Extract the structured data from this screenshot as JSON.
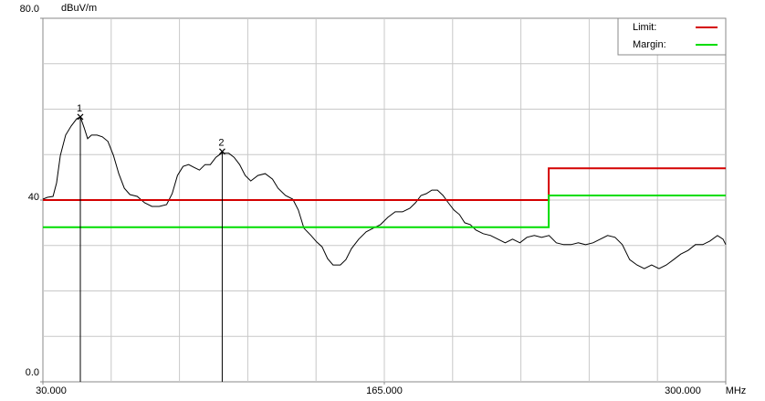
{
  "chart_data": {
    "type": "line",
    "y_unit": "dBuV/m",
    "x_unit": "MHz",
    "xlim": [
      30,
      300
    ],
    "ylim": [
      0,
      80
    ],
    "xticks": [
      {
        "value": 30,
        "label": "30.000"
      },
      {
        "value": 165,
        "label": "165.000"
      },
      {
        "value": 300,
        "label": "300.000"
      }
    ],
    "yticks": [
      {
        "value": 0,
        "label": "0.0"
      },
      40,
      {
        "value": 80,
        "label": "80.0"
      }
    ],
    "xgrid": [
      57,
      84,
      111,
      138,
      165,
      192,
      219,
      246,
      273
    ],
    "ygrid": [
      10,
      20,
      30,
      40,
      50,
      60,
      70
    ],
    "grid": true,
    "legend": "top-right",
    "series": [
      {
        "name": "Limit:",
        "color": "#d40000",
        "x": [
          30,
          230,
          230,
          300
        ],
        "values": [
          40,
          40,
          47,
          47
        ]
      },
      {
        "name": "Margin:",
        "color": "#00dd00",
        "x": [
          30,
          230,
          230,
          300
        ],
        "values": [
          34,
          34,
          41,
          41
        ]
      }
    ],
    "trace": {
      "color": "#000000",
      "x": [
        30.0,
        31.8,
        34.0,
        35.4,
        36.9,
        39.0,
        41.2,
        43.4,
        44.8,
        46.3,
        47.7,
        49.2,
        51.4,
        53.5,
        55.7,
        57.9,
        60.0,
        62.2,
        64.4,
        67.3,
        70.2,
        73.1,
        76.0,
        78.9,
        81.1,
        83.2,
        85.4,
        87.6,
        89.7,
        91.9,
        94.1,
        96.2,
        98.4,
        100.6,
        103.5,
        105.6,
        107.8,
        110.0,
        112.2,
        115.0,
        117.9,
        120.8,
        123.0,
        125.9,
        128.8,
        131.0,
        133.2,
        136.0,
        138.2,
        140.4,
        142.6,
        144.7,
        147.6,
        149.8,
        152.0,
        154.9,
        157.8,
        160.6,
        163.5,
        166.4,
        169.3,
        172.2,
        175.1,
        177.3,
        179.5,
        181.6,
        183.8,
        186.0,
        188.2,
        190.3,
        192.5,
        194.7,
        196.8,
        199.0,
        201.2,
        204.1,
        207.0,
        209.9,
        212.8,
        215.7,
        218.6,
        221.4,
        224.3,
        227.2,
        230.1,
        233.0,
        235.9,
        238.8,
        241.7,
        244.6,
        247.5,
        250.4,
        253.3,
        256.2,
        259.1,
        262.0,
        264.9,
        267.8,
        270.7,
        273.6,
        276.5,
        279.4,
        282.2,
        285.1,
        288.0,
        290.9,
        293.8,
        296.7,
        298.9,
        300.0
      ],
      "values": [
        40.2,
        40.6,
        40.8,
        43.8,
        49.8,
        54.3,
        56.3,
        57.9,
        58.3,
        55.9,
        53.5,
        54.3,
        54.3,
        53.9,
        52.9,
        49.8,
        45.8,
        42.6,
        41.2,
        40.8,
        39.4,
        38.6,
        38.6,
        39.0,
        41.4,
        45.4,
        47.4,
        47.8,
        47.2,
        46.6,
        47.8,
        47.8,
        49.4,
        50.3,
        50.3,
        49.4,
        47.8,
        45.4,
        44.2,
        45.4,
        45.8,
        44.6,
        42.6,
        41.0,
        40.2,
        37.8,
        33.8,
        32.2,
        30.8,
        29.7,
        27.1,
        25.7,
        25.7,
        26.9,
        29.3,
        31.4,
        33.0,
        33.8,
        34.6,
        36.2,
        37.4,
        37.4,
        38.2,
        39.4,
        41.0,
        41.4,
        42.2,
        42.2,
        41.0,
        39.4,
        37.8,
        36.8,
        35.0,
        34.6,
        33.4,
        32.6,
        32.2,
        31.4,
        30.6,
        31.4,
        30.6,
        31.8,
        32.2,
        31.8,
        32.2,
        30.6,
        30.2,
        30.2,
        30.6,
        30.2,
        30.6,
        31.4,
        32.2,
        31.8,
        30.2,
        26.9,
        25.7,
        24.9,
        25.7,
        24.9,
        25.7,
        26.9,
        28.1,
        28.9,
        30.2,
        30.2,
        31.0,
        32.2,
        31.4,
        30.2
      ]
    },
    "markers": [
      {
        "label": "1",
        "x": 44.8,
        "value": 58.3
      },
      {
        "label": "2",
        "x": 100.9,
        "value": 50.7
      }
    ]
  }
}
